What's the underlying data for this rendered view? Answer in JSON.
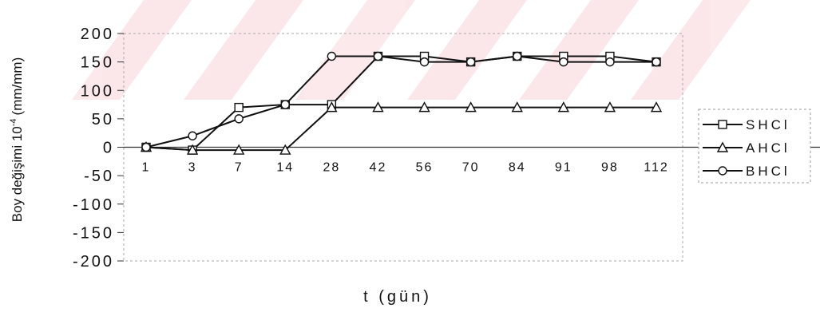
{
  "chart_data": {
    "type": "line",
    "xlabel": "t (gün)",
    "ylabel_main": "Boy değişimi 10",
    "ylabel_exp": "-4",
    "ylabel_unit": "(mm/mm)",
    "ylim": [
      -200,
      200
    ],
    "yticks": [
      "200",
      "150",
      "100",
      "50",
      "0",
      "-50",
      "-100",
      "-150",
      "-200"
    ],
    "categories": [
      "1",
      "3",
      "7",
      "14",
      "28",
      "42",
      "56",
      "70",
      "84",
      "91",
      "98",
      "112"
    ],
    "grid": "dashed border, faint",
    "legend_position": "right",
    "series": [
      {
        "name": "SHCl",
        "marker": "square",
        "color": "#111111",
        "values": [
          0,
          -5,
          70,
          75,
          75,
          160,
          160,
          150,
          160,
          160,
          160,
          150
        ]
      },
      {
        "name": "AHCl",
        "marker": "triangle",
        "color": "#111111",
        "values": [
          0,
          -5,
          -5,
          -5,
          70,
          70,
          70,
          70,
          70,
          70,
          70,
          70
        ]
      },
      {
        "name": "BHCl",
        "marker": "circle",
        "color": "#111111",
        "values": [
          0,
          20,
          50,
          75,
          160,
          160,
          150,
          150,
          160,
          150,
          150,
          150
        ]
      }
    ]
  }
}
